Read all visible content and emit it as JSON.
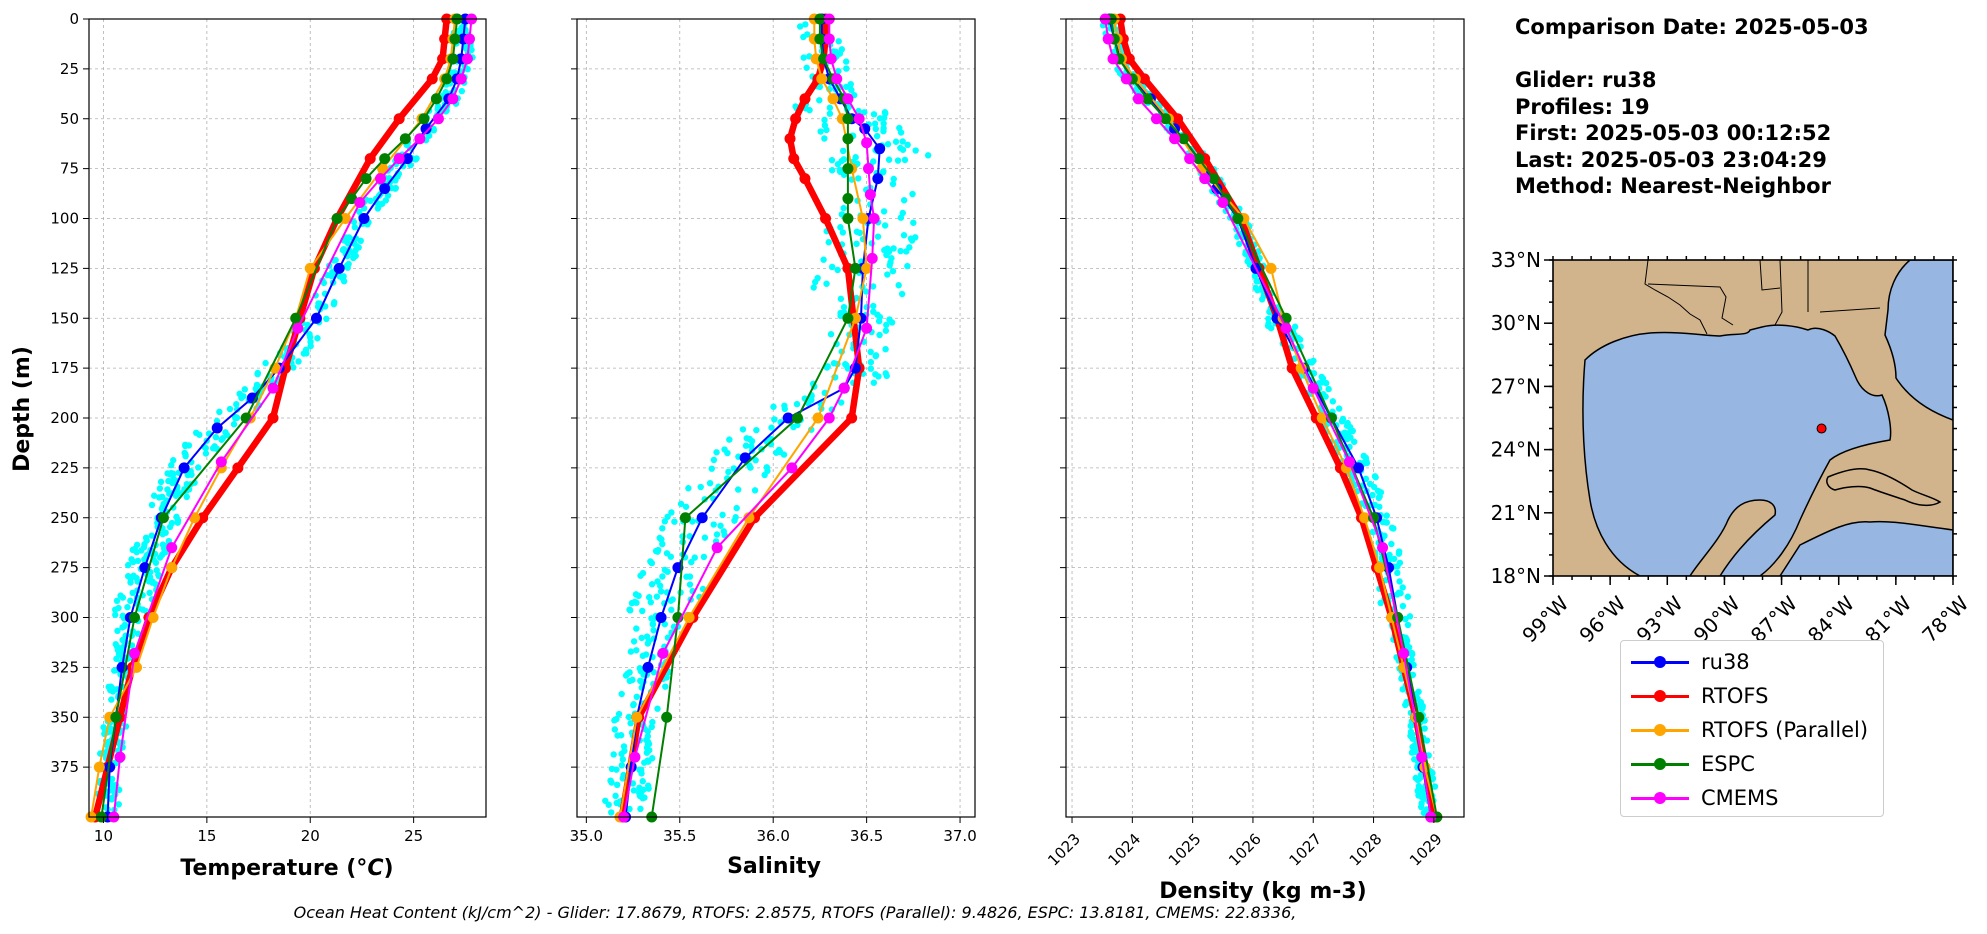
{
  "info": {
    "comparison_date": "Comparison Date: 2025-05-03",
    "glider": "Glider: ru38",
    "profiles": "Profiles: 19",
    "first": "First: 2025-05-03 00:12:52",
    "last": "Last: 2025-05-03 23:04:29",
    "method": "Method: Nearest-Neighbor"
  },
  "footer": "Ocean Heat Content (kJ/cm^2) - Glider: 17.8679,  RTOFS: 2.8575,  RTOFS (Parallel): 9.4826,  ESPC: 13.8181,  CMEMS: 22.8336,",
  "legend": [
    {
      "name": "ru38",
      "color": "#0000ff"
    },
    {
      "name": "RTOFS",
      "color": "#ff0000"
    },
    {
      "name": "RTOFS (Parallel)",
      "color": "#ffa500"
    },
    {
      "name": "ESPC",
      "color": "#008000"
    },
    {
      "name": "CMEMS",
      "color": "#ff00ff"
    }
  ],
  "map": {
    "lat_labels": [
      "33°N",
      "30°N",
      "27°N",
      "24°N",
      "21°N",
      "18°N"
    ],
    "lon_labels": [
      "99°W",
      "96°W",
      "93°W",
      "90°W",
      "87°W",
      "84°W",
      "81°W",
      "78°W"
    ],
    "land_color": "#d2b48c",
    "ocean_color": "#97b6e1",
    "glider_marker": {
      "lon": -84.9,
      "lat": 25.0
    }
  },
  "colors": {
    "glider_points": "#00ffff",
    "ru38": "#0000ff",
    "RTOFS": "#ff0000",
    "RTOFS_parallel": "#ffa500",
    "ESPC": "#008000",
    "CMEMS": "#ff00ff"
  },
  "chart_data": [
    {
      "type": "line",
      "xlabel": "Temperature (°C)",
      "ylabel": "Depth (m)",
      "xlim": [
        9.3,
        28.5
      ],
      "ylim": [
        400,
        0
      ],
      "xticks": [
        "10",
        "15",
        "20",
        "25"
      ],
      "yticks": [
        "0",
        "25",
        "50",
        "75",
        "100",
        "125",
        "150",
        "175",
        "200",
        "225",
        "250",
        "275",
        "300",
        "325",
        "350",
        "375"
      ],
      "grid": true,
      "series": [
        {
          "name": "ru38",
          "depth": [
            0,
            10,
            20,
            30,
            40,
            55,
            70,
            85,
            100,
            125,
            150,
            175,
            190,
            205,
            225,
            250,
            275,
            300,
            325,
            350,
            375,
            400
          ],
          "values": [
            27.5,
            27.4,
            27.3,
            27.1,
            26.7,
            25.6,
            24.7,
            23.6,
            22.6,
            21.4,
            20.3,
            18.5,
            17.2,
            15.5,
            13.9,
            12.8,
            12.0,
            11.3,
            10.9,
            10.6,
            10.3,
            10.2
          ]
        },
        {
          "name": "RTOFS",
          "depth": [
            0,
            10,
            20,
            30,
            50,
            70,
            100,
            125,
            150,
            175,
            200,
            225,
            250,
            275,
            300,
            325,
            350,
            375,
            400
          ],
          "values": [
            26.6,
            26.5,
            26.4,
            25.9,
            24.3,
            22.9,
            21.3,
            20.2,
            19.5,
            18.8,
            18.2,
            16.5,
            14.8,
            13.3,
            12.2,
            11.4,
            10.8,
            10.2,
            9.6
          ]
        },
        {
          "name": "RTOFS (Parallel)",
          "depth": [
            0,
            10,
            20,
            30,
            50,
            75,
            100,
            125,
            150,
            175,
            200,
            225,
            250,
            275,
            300,
            325,
            350,
            375,
            400
          ],
          "values": [
            27.0,
            26.9,
            26.8,
            26.5,
            25.4,
            23.5,
            21.7,
            20.0,
            19.3,
            18.3,
            17.1,
            15.7,
            14.4,
            13.3,
            12.4,
            11.6,
            10.3,
            9.8,
            9.4
          ]
        },
        {
          "name": "ESPC",
          "depth": [
            0,
            10,
            20,
            30,
            40,
            50,
            60,
            70,
            80,
            90,
            100,
            150,
            200,
            250,
            300,
            350,
            400
          ],
          "values": [
            27.1,
            27.0,
            26.9,
            26.6,
            26.1,
            25.5,
            24.6,
            23.6,
            22.7,
            22.0,
            21.3,
            19.3,
            16.9,
            12.9,
            11.5,
            10.6,
            9.9
          ]
        },
        {
          "name": "CMEMS",
          "depth": [
            0,
            10,
            20,
            30,
            40,
            50,
            60,
            70,
            80,
            92,
            155,
            185,
            222,
            265,
            318,
            370,
            400
          ],
          "values": [
            27.8,
            27.7,
            27.6,
            27.3,
            26.9,
            26.2,
            25.3,
            24.3,
            23.4,
            22.4,
            19.4,
            18.2,
            15.7,
            13.3,
            11.5,
            10.8,
            10.5
          ]
        }
      ]
    },
    {
      "type": "line",
      "xlabel": "Salinity",
      "xlim": [
        34.95,
        37.08
      ],
      "ylim": [
        400,
        0
      ],
      "xticks": [
        "35.0",
        "35.5",
        "36.0",
        "36.5",
        "37.0"
      ],
      "grid": true,
      "series": [
        {
          "name": "ru38",
          "depth": [
            0,
            10,
            20,
            30,
            40,
            50,
            55,
            65,
            80,
            100,
            125,
            150,
            175,
            185,
            200,
            220,
            250,
            275,
            300,
            325,
            350,
            375,
            400
          ],
          "values": [
            36.26,
            36.26,
            36.27,
            36.3,
            36.36,
            36.42,
            36.49,
            36.57,
            36.56,
            36.51,
            36.48,
            36.47,
            36.44,
            36.38,
            36.08,
            35.85,
            35.62,
            35.49,
            35.4,
            35.33,
            35.27,
            35.24,
            35.21
          ]
        },
        {
          "name": "RTOFS",
          "depth": [
            0,
            10,
            20,
            30,
            40,
            50,
            60,
            70,
            80,
            100,
            125,
            150,
            175,
            200,
            250,
            300,
            350,
            400
          ],
          "values": [
            36.28,
            36.28,
            36.27,
            36.24,
            36.17,
            36.12,
            36.09,
            36.11,
            36.17,
            36.28,
            36.4,
            36.43,
            36.46,
            36.42,
            35.9,
            35.57,
            35.28,
            35.19
          ]
        },
        {
          "name": "RTOFS (Parallel)",
          "depth": [
            0,
            10,
            20,
            30,
            40,
            50,
            75,
            100,
            125,
            150,
            200,
            250,
            300,
            350,
            400
          ],
          "values": [
            36.22,
            36.22,
            36.23,
            36.26,
            36.32,
            36.37,
            36.42,
            36.48,
            36.5,
            36.44,
            36.24,
            35.87,
            35.55,
            35.27,
            35.18
          ]
        },
        {
          "name": "ESPC",
          "depth": [
            0,
            10,
            20,
            30,
            40,
            50,
            60,
            75,
            90,
            100,
            125,
            150,
            200,
            250,
            300,
            350,
            400
          ],
          "values": [
            36.25,
            36.25,
            36.27,
            36.32,
            36.38,
            36.4,
            36.4,
            36.4,
            36.4,
            36.4,
            36.44,
            36.4,
            36.13,
            35.53,
            35.49,
            35.43,
            35.35
          ]
        },
        {
          "name": "CMEMS",
          "depth": [
            0,
            10,
            20,
            30,
            40,
            50,
            62,
            75,
            88,
            100,
            120,
            155,
            185,
            200,
            225,
            265,
            318,
            370,
            400
          ],
          "values": [
            36.3,
            36.3,
            36.31,
            36.34,
            36.4,
            36.46,
            36.5,
            36.51,
            36.52,
            36.54,
            36.53,
            36.5,
            36.38,
            36.3,
            36.1,
            35.7,
            35.41,
            35.26,
            35.2
          ]
        }
      ]
    },
    {
      "type": "line",
      "xlabel": "Density (kg m-3)",
      "xlim": [
        1022.9,
        1029.5
      ],
      "ylim": [
        400,
        0
      ],
      "xticks": [
        "1023",
        "1024",
        "1025",
        "1026",
        "1027",
        "1028",
        "1029"
      ],
      "grid": true,
      "series": [
        {
          "name": "ru38",
          "depth": [
            0,
            10,
            20,
            30,
            40,
            55,
            70,
            85,
            100,
            125,
            150,
            175,
            200,
            225,
            250,
            275,
            300,
            325,
            350,
            375,
            400
          ],
          "values": [
            1023.62,
            1023.7,
            1023.8,
            1024.0,
            1024.3,
            1024.7,
            1025.1,
            1025.4,
            1025.75,
            1026.05,
            1026.4,
            1026.85,
            1027.3,
            1027.75,
            1028.05,
            1028.25,
            1028.4,
            1028.55,
            1028.7,
            1028.82,
            1028.95
          ]
        },
        {
          "name": "RTOFS",
          "depth": [
            0,
            10,
            20,
            30,
            50,
            70,
            100,
            125,
            150,
            175,
            200,
            225,
            250,
            275,
            300,
            325,
            350,
            375,
            400
          ],
          "values": [
            1023.8,
            1023.85,
            1023.95,
            1024.2,
            1024.75,
            1025.2,
            1025.8,
            1026.1,
            1026.4,
            1026.65,
            1027.05,
            1027.45,
            1027.8,
            1028.05,
            1028.3,
            1028.5,
            1028.7,
            1028.85,
            1029.0
          ]
        },
        {
          "name": "RTOFS (Parallel)",
          "depth": [
            0,
            10,
            20,
            30,
            50,
            75,
            100,
            125,
            150,
            175,
            200,
            225,
            250,
            275,
            300,
            325,
            350,
            375,
            400
          ],
          "values": [
            1023.7,
            1023.75,
            1023.82,
            1024.05,
            1024.6,
            1025.15,
            1025.85,
            1026.3,
            1026.5,
            1026.8,
            1027.15,
            1027.55,
            1027.85,
            1028.1,
            1028.3,
            1028.5,
            1028.7,
            1028.85,
            1029.05
          ]
        },
        {
          "name": "ESPC",
          "depth": [
            0,
            10,
            20,
            30,
            40,
            50,
            60,
            70,
            80,
            90,
            100,
            150,
            200,
            250,
            300,
            350,
            400
          ],
          "values": [
            1023.65,
            1023.7,
            1023.78,
            1024.0,
            1024.25,
            1024.55,
            1024.85,
            1025.1,
            1025.35,
            1025.55,
            1025.75,
            1026.55,
            1027.3,
            1028.0,
            1028.4,
            1028.75,
            1029.05
          ]
        },
        {
          "name": "CMEMS",
          "depth": [
            0,
            10,
            20,
            30,
            40,
            50,
            60,
            70,
            80,
            92,
            155,
            185,
            222,
            265,
            318,
            370,
            400
          ],
          "values": [
            1023.55,
            1023.6,
            1023.68,
            1023.9,
            1024.1,
            1024.4,
            1024.7,
            1024.95,
            1025.2,
            1025.5,
            1026.55,
            1027.0,
            1027.6,
            1028.15,
            1028.5,
            1028.8,
            1028.95
          ]
        }
      ]
    }
  ]
}
